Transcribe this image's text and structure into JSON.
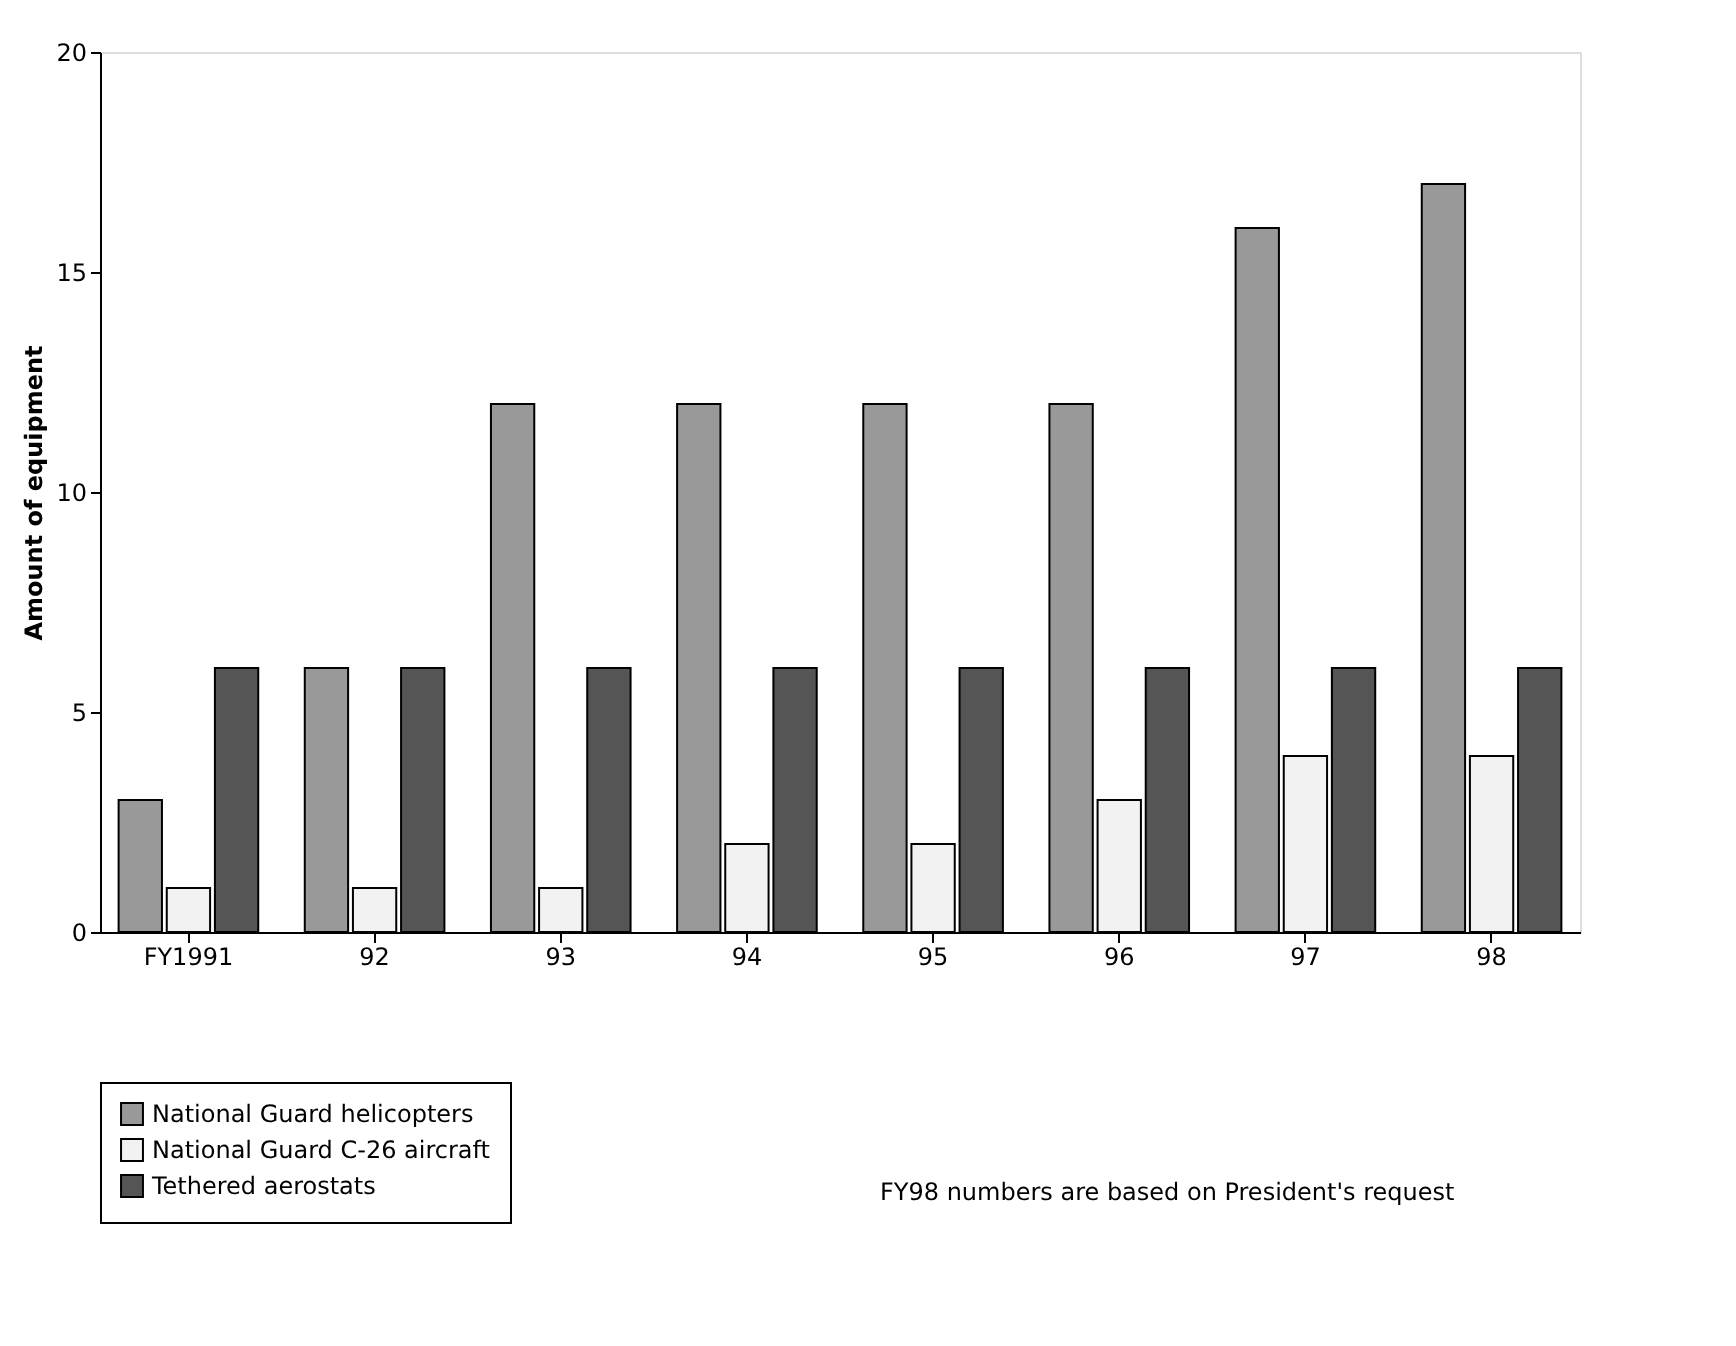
{
  "chart_data": {
    "type": "bar",
    "ylabel": "Amount of equipment",
    "categories": [
      "FY1991",
      "92",
      "93",
      "94",
      "95",
      "96",
      "97",
      "98"
    ],
    "series": [
      {
        "name": "National Guard helicopters",
        "color": "#999999",
        "values": [
          3,
          6,
          12,
          12,
          12,
          12,
          16,
          17
        ]
      },
      {
        "name": "National Guard C-26 aircraft",
        "color": "#f2f2f2",
        "values": [
          1,
          1,
          1,
          2,
          2,
          3,
          4,
          4
        ]
      },
      {
        "name": "Tethered aerostats",
        "color": "#555555",
        "values": [
          6,
          6,
          6,
          6,
          6,
          6,
          6,
          6
        ]
      }
    ],
    "ylim": [
      0,
      20
    ],
    "yticks": [
      0,
      5,
      10,
      15,
      20
    ],
    "grid": false,
    "legend": "bottom left",
    "annotations": [
      "FY98 numbers are based on President's request"
    ]
  }
}
